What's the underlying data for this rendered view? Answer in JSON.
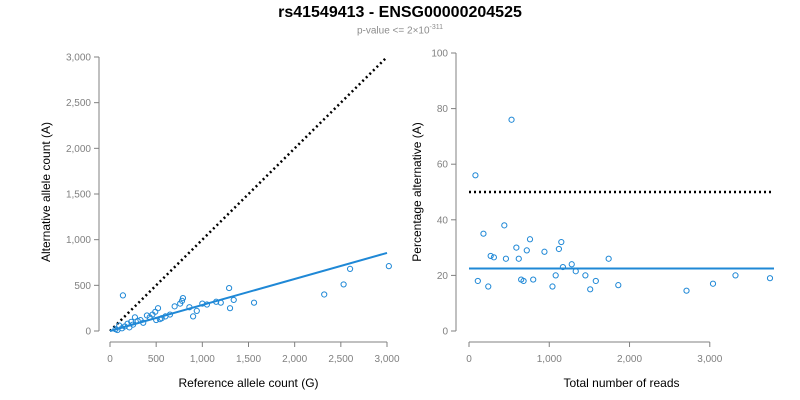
{
  "title": "rs41549413 - ENSG00000204525",
  "subtitle": {
    "prefix": "p-value <= 2",
    "times": "×",
    "base": "10",
    "exponent": "-311"
  },
  "colors": {
    "point": "#1f88d6",
    "fit": "#1f88d6",
    "reference": "#000000",
    "axis": "#808080"
  },
  "chart_data": [
    {
      "type": "scatter",
      "xlabel": "Reference allele count (G)",
      "ylabel": "Alternative allele count (A)",
      "xlim": [
        0,
        3000
      ],
      "ylim": [
        0,
        3000
      ],
      "xticks": [
        0,
        500,
        1000,
        1500,
        2000,
        2500,
        3000
      ],
      "xtick_labels": [
        "0",
        "500",
        "1,000",
        "1,500",
        "2,000",
        "2,500",
        "3,000"
      ],
      "yticks": [
        0,
        500,
        1000,
        1500,
        2000,
        2500,
        3000
      ],
      "ytick_labels": [
        "0",
        "500",
        "1,000",
        "1,500",
        "2,000",
        "2,500",
        "3,000"
      ],
      "points": [
        [
          60,
          20
        ],
        [
          80,
          10
        ],
        [
          100,
          60
        ],
        [
          130,
          30
        ],
        [
          140,
          390
        ],
        [
          160,
          50
        ],
        [
          190,
          80
        ],
        [
          210,
          40
        ],
        [
          230,
          100
        ],
        [
          250,
          70
        ],
        [
          270,
          150
        ],
        [
          300,
          110
        ],
        [
          330,
          120
        ],
        [
          360,
          90
        ],
        [
          400,
          170
        ],
        [
          430,
          150
        ],
        [
          460,
          180
        ],
        [
          490,
          210
        ],
        [
          500,
          120
        ],
        [
          520,
          250
        ],
        [
          540,
          130
        ],
        [
          560,
          140
        ],
        [
          600,
          160
        ],
        [
          650,
          180
        ],
        [
          700,
          270
        ],
        [
          760,
          300
        ],
        [
          780,
          330
        ],
        [
          790,
          360
        ],
        [
          860,
          260
        ],
        [
          900,
          160
        ],
        [
          940,
          220
        ],
        [
          1000,
          300
        ],
        [
          1050,
          290
        ],
        [
          1150,
          320
        ],
        [
          1200,
          310
        ],
        [
          1290,
          470
        ],
        [
          1300,
          250
        ],
        [
          1340,
          340
        ],
        [
          1560,
          310
        ],
        [
          2320,
          400
        ],
        [
          2530,
          510
        ],
        [
          2600,
          680
        ],
        [
          3020,
          710
        ]
      ],
      "fit_line": {
        "x": [
          0,
          3000
        ],
        "y": [
          0,
          855
        ]
      },
      "reference_line": {
        "x": [
          0,
          3000
        ],
        "y": [
          0,
          3000
        ]
      },
      "grid": false
    },
    {
      "type": "scatter",
      "xlabel": "Total number of reads",
      "ylabel": "Percentage alternative (A)",
      "xlim": [
        0,
        3800
      ],
      "ylim": [
        0,
        100
      ],
      "xticks": [
        0,
        1000,
        2000,
        3000
      ],
      "xtick_labels": [
        "0",
        "1,000",
        "2,000",
        "3,000"
      ],
      "yticks": [
        0,
        20,
        40,
        60,
        80,
        100
      ],
      "ytick_labels": [
        "0",
        "20",
        "40",
        "60",
        "80",
        "100"
      ],
      "points": [
        [
          80,
          56
        ],
        [
          110,
          18
        ],
        [
          180,
          35
        ],
        [
          240,
          16
        ],
        [
          270,
          27
        ],
        [
          310,
          26.5
        ],
        [
          440,
          38
        ],
        [
          460,
          26
        ],
        [
          530,
          76
        ],
        [
          590,
          30
        ],
        [
          620,
          26
        ],
        [
          650,
          18.5
        ],
        [
          680,
          18
        ],
        [
          720,
          29
        ],
        [
          760,
          33
        ],
        [
          800,
          18.5
        ],
        [
          940,
          28.5
        ],
        [
          1040,
          16
        ],
        [
          1080,
          20
        ],
        [
          1120,
          29.5
        ],
        [
          1150,
          32
        ],
        [
          1170,
          23
        ],
        [
          1280,
          24
        ],
        [
          1330,
          21.5
        ],
        [
          1450,
          20
        ],
        [
          1510,
          15
        ],
        [
          1580,
          18
        ],
        [
          1740,
          26
        ],
        [
          1860,
          16.5
        ],
        [
          2710,
          14.5
        ],
        [
          3040,
          17
        ],
        [
          3320,
          20
        ],
        [
          3750,
          19
        ]
      ],
      "fit_line": {
        "x": [
          0,
          3800
        ],
        "y": [
          22.5,
          22.5
        ]
      },
      "reference_line": {
        "x": [
          0,
          3800
        ],
        "y": [
          50,
          50
        ]
      },
      "grid": false
    }
  ]
}
